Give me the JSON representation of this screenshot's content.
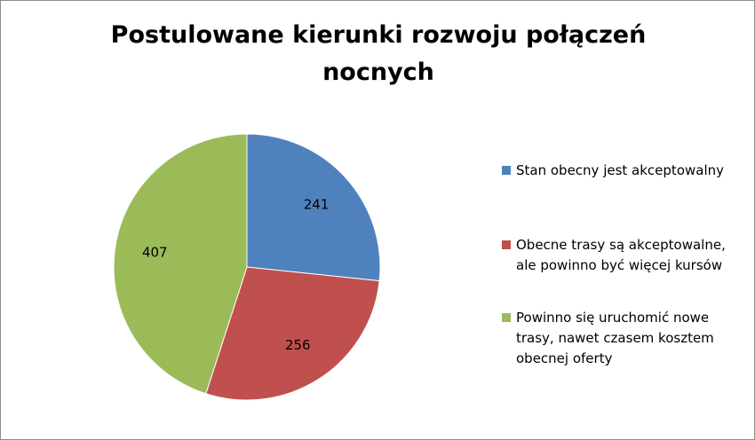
{
  "chart_data": {
    "type": "pie",
    "title": "Postulowane kierunki rozwoju połączeń nocnych",
    "categories": [
      "Stan obecny jest akceptowalny",
      "Obecne trasy są akceptowalne, ale powinno być więcej kursów",
      "Powinno się uruchomić nowe trasy, nawet czasem kosztem obecnej oferty"
    ],
    "values": [
      241,
      256,
      407
    ],
    "colors": [
      "#4f81bd",
      "#c0504d",
      "#9bbb59"
    ],
    "legend_position": "right",
    "start_angle": "top, clockwise"
  },
  "legend": {
    "items": [
      {
        "label": "Stan obecny jest akceptowalny",
        "color": "#4f81bd"
      },
      {
        "label": "Obecne trasy są akceptowalne, ale powinno być więcej kursów",
        "color": "#c0504d"
      },
      {
        "label": "Powinno się uruchomić nowe trasy, nawet czasem kosztem obecnej oferty",
        "color": "#9bbb59"
      }
    ]
  }
}
